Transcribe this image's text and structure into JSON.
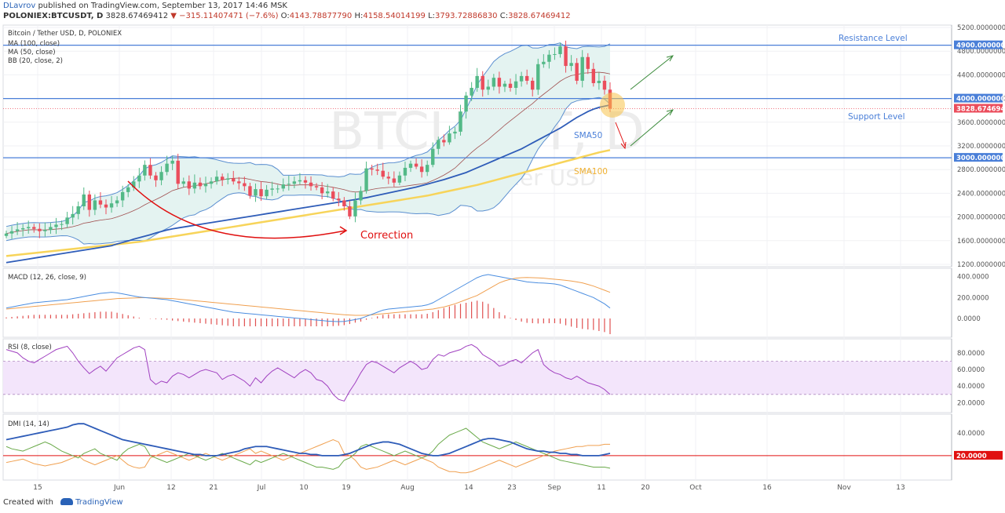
{
  "header": {
    "author": "DLavrov",
    "published_text": "published on TradingView.com, September 13, 2017 14:46 MSK",
    "symbol": "POLONIEX:BTCUSDT, D",
    "price": "3828.67469412",
    "change": "−315.11407471 (−7.6%)",
    "o_label": "O:",
    "o_value": "4143.78877790",
    "h_label": "H:",
    "h_value": "4158.54014199",
    "l_label": "L:",
    "l_value": "3793.72886830",
    "c_label": "C:",
    "c_value": "3828.67469412"
  },
  "legend": {
    "title": "Bitcoin / Tether USD, D, POLONIEX",
    "ma100": "MA (100, close)",
    "ma50": "MA (50, close)",
    "bb": "BB (20, close, 2)"
  },
  "watermark": {
    "symbol": "BTCUSDT, D",
    "name": "Bitcoin / Tether USD"
  },
  "annotations": {
    "resistance": "Resistance Level",
    "support": "Support Level",
    "sma50": "SMA50",
    "sma100": "SMA100",
    "correction": "Correction"
  },
  "footer": {
    "created_with": "Created with",
    "brand": "TradingView"
  },
  "colors": {
    "up": "#53b987",
    "down": "#eb4d5c",
    "ma50": "#2e5cb8",
    "ma100": "#f7d45a",
    "bb": "#5b8fd0",
    "bb_fill": "#e4f3f1",
    "level": "#4a7fd8",
    "price": "#eb4d5c",
    "macd": "#4a8de0",
    "macd_signal": "#f0a050",
    "rsi": "#a040c0",
    "rsi_band": "#f3e5fb",
    "dmi_adx": "#2e5cb8",
    "dmi_plus": "#6aaa4a",
    "dmi_minus": "#f0a050",
    "red": "#e01010"
  },
  "chart_data": [
    {
      "type": "candlestick",
      "title": "Bitcoin / Tether USD, D, POLONIEX",
      "ylim": [
        1200,
        5200
      ],
      "y_ticks": [
        "1200.00000000",
        "1600.00000000",
        "2000.00000000",
        "2400.00000000",
        "2800.00000000",
        "3200.00000000",
        "3600.00000000",
        "4000.00000000",
        "4400.00000000",
        "4800.00000000",
        "5200.00000000"
      ],
      "x_ticks": [
        "15",
        "Jun",
        "12",
        "21",
        "Jul",
        "10",
        "19",
        "Aug",
        "14",
        "23",
        "Sep",
        "11",
        "20",
        "Oct",
        "16",
        "Nov",
        "13"
      ],
      "closes": [
        1720,
        1760,
        1790,
        1810,
        1830,
        1800,
        1760,
        1780,
        1830,
        1870,
        1880,
        1990,
        2050,
        2180,
        2380,
        2120,
        2280,
        2210,
        2160,
        2230,
        2280,
        2420,
        2500,
        2600,
        2700,
        2880,
        2700,
        2620,
        2760,
        2900,
        2950,
        2560,
        2600,
        2480,
        2580,
        2520,
        2560,
        2600,
        2680,
        2630,
        2650,
        2600,
        2570,
        2520,
        2360,
        2470,
        2350,
        2460,
        2480,
        2480,
        2550,
        2560,
        2600,
        2620,
        2580,
        2520,
        2500,
        2400,
        2430,
        2310,
        2280,
        2180,
        2010,
        2280,
        2440,
        2820,
        2800,
        2780,
        2680,
        2650,
        2580,
        2700,
        2830,
        2900,
        2850,
        2760,
        2880,
        3150,
        3300,
        3260,
        3410,
        3440,
        3780,
        4050,
        4180,
        4380,
        4150,
        4200,
        4350,
        4200,
        4250,
        4180,
        4290,
        4380,
        4300,
        4150,
        4580,
        4620,
        4740,
        4750,
        4880,
        4550,
        4600,
        4300,
        4700,
        4500,
        4260,
        4300,
        4150,
        3829
      ],
      "sma50_series": [
        1230,
        1245,
        1260,
        1275,
        1290,
        1305,
        1320,
        1335,
        1350,
        1365,
        1380,
        1395,
        1410,
        1425,
        1440,
        1455,
        1470,
        1485,
        1500,
        1515,
        1545,
        1570,
        1595,
        1625,
        1650,
        1675,
        1700,
        1730,
        1755,
        1780,
        1800,
        1815,
        1830,
        1845,
        1860,
        1875,
        1890,
        1905,
        1920,
        1935,
        1950,
        1965,
        1980,
        1995,
        2010,
        2025,
        2040,
        2055,
        2070,
        2085,
        2100,
        2115,
        2130,
        2145,
        2160,
        2175,
        2190,
        2205,
        2220,
        2235,
        2250,
        2265,
        2280,
        2295,
        2310,
        2325,
        2345,
        2365,
        2385,
        2405,
        2425,
        2445,
        2465,
        2485,
        2505,
        2530,
        2555,
        2580,
        2605,
        2630,
        2660,
        2690,
        2720,
        2750,
        2790,
        2830,
        2870,
        2910,
        2950,
        2990,
        3030,
        3070,
        3110,
        3150,
        3200,
        3250,
        3300,
        3350,
        3400,
        3450,
        3500,
        3560,
        3620,
        3680,
        3730,
        3780,
        3820,
        3850,
        3870,
        3890
      ],
      "sma100_series": [
        1340,
        1350,
        1360,
        1370,
        1380,
        1390,
        1400,
        1410,
        1420,
        1430,
        1440,
        1450,
        1460,
        1470,
        1480,
        1490,
        1500,
        1510,
        1520,
        1530,
        1540,
        1550,
        1560,
        1570,
        1580,
        1595,
        1610,
        1625,
        1640,
        1655,
        1670,
        1685,
        1700,
        1715,
        1730,
        1745,
        1760,
        1775,
        1790,
        1805,
        1820,
        1835,
        1850,
        1865,
        1880,
        1895,
        1910,
        1925,
        1940,
        1955,
        1970,
        1985,
        2000,
        2015,
        2030,
        2045,
        2060,
        2075,
        2090,
        2105,
        2120,
        2135,
        2150,
        2165,
        2180,
        2195,
        2210,
        2225,
        2240,
        2255,
        2270,
        2285,
        2300,
        2315,
        2330,
        2345,
        2360,
        2380,
        2400,
        2420,
        2440,
        2460,
        2480,
        2500,
        2520,
        2540,
        2565,
        2590,
        2615,
        2640,
        2665,
        2690,
        2715,
        2740,
        2765,
        2790,
        2815,
        2840,
        2865,
        2890,
        2915,
        2940,
        2965,
        2990,
        3015,
        3040,
        3065,
        3090,
        3110,
        3130
      ]
    },
    {
      "type": "line",
      "title": "MACD (12, 26, close, 9)",
      "ylim": [
        -150,
        450
      ],
      "y_ticks": [
        "0.0000",
        "200.0000",
        "400.0000"
      ],
      "series": [
        {
          "name": "MACD",
          "values": [
            100,
            110,
            120,
            130,
            140,
            150,
            155,
            160,
            165,
            170,
            175,
            180,
            190,
            200,
            210,
            220,
            230,
            240,
            245,
            250,
            245,
            235,
            225,
            215,
            205,
            200,
            195,
            190,
            185,
            180,
            170,
            160,
            150,
            140,
            130,
            120,
            110,
            100,
            90,
            80,
            70,
            60,
            55,
            50,
            45,
            40,
            35,
            30,
            25,
            20,
            15,
            10,
            5,
            0,
            -5,
            -10,
            -15,
            -20,
            -25,
            -28,
            -30,
            -28,
            -20,
            -10,
            0,
            20,
            40,
            60,
            80,
            90,
            95,
            100,
            105,
            110,
            115,
            120,
            130,
            150,
            180,
            210,
            240,
            270,
            300,
            330,
            360,
            390,
            410,
            420,
            410,
            400,
            390,
            380,
            370,
            360,
            350,
            345,
            340,
            338,
            335,
            330,
            320,
            300,
            280,
            260,
            240,
            220,
            200,
            170,
            140,
            100
          ]
        },
        {
          "name": "Signal",
          "values": [
            90,
            95,
            100,
            105,
            110,
            115,
            120,
            125,
            130,
            135,
            140,
            145,
            150,
            155,
            160,
            165,
            170,
            175,
            180,
            185,
            190,
            192,
            194,
            196,
            198,
            200,
            198,
            196,
            194,
            192,
            190,
            185,
            180,
            175,
            170,
            165,
            160,
            155,
            150,
            145,
            140,
            135,
            130,
            125,
            120,
            115,
            110,
            105,
            100,
            95,
            90,
            85,
            80,
            75,
            70,
            65,
            60,
            55,
            50,
            45,
            40,
            36,
            33,
            30,
            30,
            32,
            35,
            40,
            45,
            50,
            55,
            60,
            65,
            70,
            75,
            80,
            85,
            90,
            100,
            110,
            125,
            140,
            160,
            180,
            200,
            220,
            250,
            280,
            310,
            340,
            360,
            375,
            385,
            390,
            392,
            390,
            388,
            385,
            380,
            375,
            370,
            365,
            358,
            350,
            340,
            325,
            310,
            290,
            270,
            250
          ]
        }
      ]
    },
    {
      "type": "line",
      "title": "RSI (8, close)",
      "ylim": [
        10,
        95
      ],
      "y_ticks": [
        "20.0000",
        "40.0000",
        "60.0000",
        "80.0000"
      ],
      "band": [
        30,
        70
      ],
      "values": [
        84,
        82,
        80,
        74,
        70,
        68,
        72,
        76,
        80,
        84,
        86,
        88,
        80,
        70,
        62,
        55,
        60,
        64,
        58,
        66,
        74,
        78,
        82,
        86,
        88,
        84,
        48,
        42,
        46,
        44,
        52,
        56,
        54,
        50,
        54,
        58,
        60,
        58,
        56,
        48,
        52,
        54,
        50,
        46,
        40,
        50,
        44,
        52,
        58,
        62,
        58,
        54,
        50,
        56,
        60,
        56,
        48,
        46,
        40,
        30,
        24,
        22,
        34,
        44,
        56,
        66,
        70,
        68,
        64,
        60,
        56,
        62,
        66,
        70,
        66,
        60,
        62,
        72,
        78,
        76,
        80,
        82,
        84,
        88,
        90,
        86,
        78,
        74,
        70,
        64,
        66,
        70,
        72,
        68,
        74,
        80,
        84,
        66,
        60,
        56,
        54,
        50,
        48,
        52,
        48,
        44,
        42,
        40,
        36,
        30
      ]
    },
    {
      "type": "line",
      "title": "DMI (14, 14)",
      "ylim": [
        0,
        55
      ],
      "y_ticks": [
        "20.0000",
        "40.0000"
      ],
      "red_line": 20,
      "series": [
        {
          "name": "ADX",
          "values": [
            34,
            35,
            36,
            37,
            38,
            39,
            40,
            41,
            42,
            43,
            44,
            45,
            47,
            48,
            48,
            46,
            44,
            42,
            40,
            38,
            36,
            34,
            33,
            32,
            31,
            30,
            29,
            28,
            27,
            26,
            25,
            24,
            23,
            22,
            21,
            21,
            20,
            20,
            20,
            21,
            22,
            23,
            24,
            26,
            27,
            28,
            28,
            28,
            27,
            26,
            25,
            24,
            23,
            22,
            22,
            21,
            21,
            20,
            20,
            20,
            20,
            21,
            22,
            24,
            26,
            28,
            30,
            31,
            32,
            32,
            31,
            30,
            28,
            26,
            24,
            22,
            21,
            20,
            20,
            21,
            22,
            24,
            26,
            28,
            30,
            32,
            34,
            35,
            35,
            34,
            33,
            32,
            30,
            28,
            26,
            25,
            24,
            24,
            23,
            23,
            22,
            22,
            21,
            21,
            20,
            20,
            20,
            20,
            21,
            22
          ]
        },
        {
          "name": "+DI",
          "values": [
            28,
            26,
            25,
            24,
            26,
            28,
            30,
            32,
            30,
            27,
            24,
            22,
            20,
            18,
            22,
            24,
            26,
            22,
            20,
            18,
            16,
            22,
            26,
            28,
            30,
            28,
            20,
            18,
            16,
            14,
            16,
            18,
            20,
            22,
            20,
            18,
            16,
            18,
            20,
            22,
            20,
            18,
            16,
            14,
            12,
            16,
            14,
            16,
            18,
            20,
            22,
            20,
            18,
            16,
            14,
            12,
            10,
            10,
            9,
            8,
            10,
            16,
            18,
            22,
            28,
            30,
            28,
            26,
            24,
            22,
            20,
            22,
            24,
            22,
            20,
            18,
            20,
            24,
            30,
            34,
            38,
            40,
            42,
            44,
            40,
            36,
            32,
            30,
            28,
            26,
            28,
            30,
            32,
            30,
            28,
            26,
            24,
            22,
            20,
            18,
            16,
            15,
            14,
            13,
            12,
            11,
            10,
            10,
            10,
            9
          ]
        },
        {
          "name": "-DI",
          "values": [
            14,
            15,
            16,
            17,
            15,
            13,
            12,
            11,
            12,
            13,
            14,
            16,
            18,
            20,
            16,
            14,
            12,
            14,
            16,
            18,
            20,
            16,
            12,
            10,
            9,
            10,
            18,
            20,
            22,
            24,
            22,
            20,
            18,
            16,
            18,
            20,
            22,
            20,
            18,
            16,
            18,
            20,
            22,
            24,
            26,
            22,
            24,
            22,
            20,
            18,
            16,
            18,
            20,
            22,
            24,
            26,
            28,
            30,
            32,
            34,
            32,
            22,
            20,
            16,
            10,
            8,
            9,
            10,
            12,
            14,
            16,
            14,
            12,
            14,
            16,
            18,
            16,
            14,
            10,
            8,
            6,
            6,
            5,
            5,
            6,
            8,
            10,
            12,
            14,
            16,
            14,
            12,
            10,
            12,
            14,
            16,
            18,
            20,
            22,
            24,
            25,
            26,
            27,
            28,
            28,
            29,
            29,
            29,
            30,
            30
          ]
        }
      ]
    }
  ]
}
